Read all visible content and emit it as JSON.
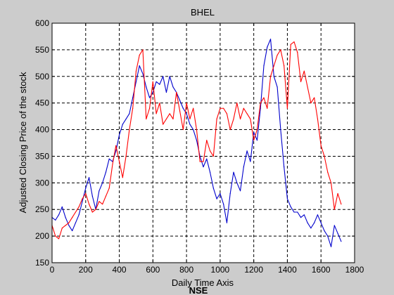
{
  "chart_data": {
    "type": "line",
    "title": "BHEL",
    "xlabel": "Daily Time Axis",
    "ylabel": "Adjusted Closing Price of the stock",
    "caption": "NSE",
    "xlim": [
      0,
      1800
    ],
    "ylim": [
      150,
      600
    ],
    "xticks": [
      0,
      200,
      400,
      600,
      800,
      1000,
      1200,
      1400,
      1600,
      1800
    ],
    "yticks": [
      150,
      200,
      250,
      300,
      350,
      400,
      450,
      500,
      550,
      600
    ],
    "grid": true,
    "series": [
      {
        "color": "#0000cc",
        "x": [
          0,
          20,
          40,
          60,
          80,
          100,
          120,
          140,
          160,
          180,
          200,
          220,
          240,
          260,
          280,
          300,
          320,
          340,
          360,
          380,
          400,
          420,
          440,
          460,
          480,
          500,
          520,
          540,
          560,
          580,
          600,
          620,
          640,
          660,
          680,
          700,
          720,
          740,
          760,
          780,
          800,
          820,
          840,
          860,
          880,
          900,
          920,
          940,
          960,
          980,
          1000,
          1020,
          1040,
          1060,
          1080,
          1100,
          1120,
          1140,
          1160,
          1180,
          1200,
          1220,
          1240,
          1260,
          1280,
          1300,
          1320,
          1340,
          1360,
          1380,
          1400,
          1420,
          1440,
          1460,
          1480,
          1500,
          1520,
          1540,
          1560,
          1580,
          1600,
          1620,
          1640,
          1660,
          1680,
          1700,
          1720
        ],
        "y": [
          235,
          230,
          240,
          255,
          235,
          220,
          210,
          225,
          240,
          265,
          290,
          310,
          275,
          250,
          285,
          300,
          320,
          345,
          340,
          360,
          390,
          410,
          420,
          430,
          460,
          490,
          520,
          505,
          480,
          460,
          470,
          490,
          485,
          500,
          470,
          500,
          480,
          470,
          455,
          440,
          430,
          410,
          400,
          380,
          350,
          330,
          345,
          320,
          290,
          270,
          280,
          260,
          225,
          280,
          320,
          300,
          285,
          330,
          360,
          340,
          395,
          380,
          440,
          520,
          555,
          570,
          500,
          480,
          400,
          330,
          270,
          255,
          245,
          245,
          235,
          240,
          225,
          215,
          225,
          240,
          225,
          210,
          200,
          180,
          220,
          205,
          190
        ]
      },
      {
        "color": "#ff0000",
        "x": [
          0,
          20,
          40,
          60,
          80,
          100,
          120,
          140,
          160,
          180,
          200,
          220,
          240,
          260,
          280,
          300,
          320,
          340,
          360,
          380,
          400,
          420,
          440,
          460,
          480,
          500,
          520,
          540,
          560,
          580,
          600,
          620,
          640,
          660,
          680,
          700,
          720,
          740,
          760,
          780,
          800,
          820,
          840,
          860,
          880,
          900,
          920,
          940,
          960,
          980,
          1000,
          1020,
          1040,
          1060,
          1080,
          1100,
          1120,
          1140,
          1160,
          1180,
          1200,
          1220,
          1240,
          1260,
          1280,
          1300,
          1320,
          1340,
          1360,
          1380,
          1400,
          1420,
          1440,
          1460,
          1480,
          1500,
          1520,
          1540,
          1560,
          1580,
          1600,
          1620,
          1640,
          1660,
          1680,
          1700,
          1720
        ],
        "y": [
          220,
          200,
          195,
          215,
          220,
          225,
          235,
          245,
          255,
          270,
          280,
          260,
          245,
          250,
          265,
          260,
          275,
          290,
          335,
          370,
          340,
          310,
          350,
          400,
          440,
          510,
          540,
          550,
          420,
          440,
          490,
          430,
          450,
          410,
          420,
          430,
          420,
          470,
          435,
          400,
          450,
          420,
          440,
          400,
          340,
          340,
          380,
          360,
          350,
          420,
          440,
          440,
          430,
          400,
          420,
          450,
          420,
          440,
          430,
          420,
          380,
          400,
          450,
          460,
          440,
          500,
          520,
          540,
          550,
          520,
          440,
          560,
          565,
          545,
          490,
          510,
          480,
          450,
          460,
          420,
          370,
          350,
          320,
          300,
          250,
          280,
          260
        ]
      }
    ]
  }
}
